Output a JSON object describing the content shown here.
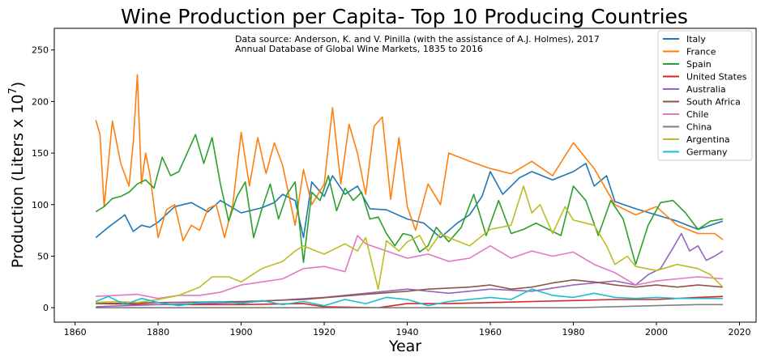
{
  "chart_data": {
    "type": "line",
    "title": "Wine Production per Capita- Top 10 Producing Countries",
    "xlabel": "Year",
    "ylabel": "Production (Liters x 10",
    "ylabel_sup": "7",
    "ylabel_close": ")",
    "xlim": [
      1855,
      2024
    ],
    "ylim": [
      -14,
      271
    ],
    "xticks": [
      1860,
      1880,
      1900,
      1920,
      1940,
      1960,
      1980,
      2000,
      2020
    ],
    "yticks": [
      0,
      50,
      100,
      150,
      200,
      250
    ],
    "annotation": [
      "Data source: Anderson, K. and V. Pinilla (with the assistance of A.J. Holmes), 2017",
      "Annual Database of Global Wine Markets, 1835 to 2016"
    ],
    "legend_position": "top-right",
    "series": [
      {
        "name": "Italy",
        "color": "#1f77b4",
        "x": [
          1865,
          1868,
          1872,
          1874,
          1876,
          1878,
          1880,
          1884,
          1888,
          1892,
          1895,
          1900,
          1905,
          1908,
          1910,
          1913,
          1915,
          1917,
          1920,
          1922,
          1925,
          1928,
          1931,
          1935,
          1940,
          1944,
          1948,
          1952,
          1955,
          1958,
          1960,
          1963,
          1967,
          1970,
          1975,
          1980,
          1983,
          1985,
          1988,
          1990,
          1995,
          2000,
          2005,
          2010,
          2016
        ],
        "y": [
          68,
          78,
          90,
          74,
          80,
          78,
          83,
          98,
          102,
          93,
          104,
          92,
          97,
          102,
          110,
          104,
          68,
          122,
          108,
          128,
          110,
          118,
          96,
          95,
          86,
          82,
          68,
          82,
          90,
          108,
          132,
          110,
          126,
          132,
          124,
          132,
          140,
          118,
          128,
          103,
          96,
          90,
          84,
          76,
          84
        ]
      },
      {
        "name": "France",
        "color": "#ff7f0e",
        "x": [
          1865,
          1866,
          1867,
          1869,
          1871,
          1873,
          1874,
          1875,
          1876,
          1877,
          1878,
          1880,
          1882,
          1884,
          1886,
          1888,
          1890,
          1892,
          1894,
          1896,
          1898,
          1900,
          1902,
          1904,
          1906,
          1908,
          1910,
          1913,
          1915,
          1917,
          1920,
          1922,
          1924,
          1926,
          1928,
          1930,
          1932,
          1934,
          1936,
          1938,
          1940,
          1942,
          1945,
          1948,
          1950,
          1955,
          1960,
          1965,
          1970,
          1975,
          1980,
          1985,
          1990,
          1995,
          2000,
          2005,
          2010,
          2014,
          2016
        ],
        "y": [
          182,
          168,
          98,
          181,
          140,
          118,
          160,
          226,
          120,
          150,
          130,
          68,
          95,
          100,
          65,
          80,
          75,
          96,
          100,
          68,
          100,
          170,
          118,
          165,
          130,
          160,
          138,
          80,
          134,
          100,
          120,
          194,
          120,
          178,
          150,
          110,
          176,
          185,
          105,
          165,
          98,
          75,
          120,
          100,
          150,
          142,
          135,
          130,
          142,
          128,
          160,
          135,
          100,
          90,
          98,
          80,
          72,
          72,
          66
        ]
      },
      {
        "name": "Spain",
        "color": "#2ca02c",
        "x": [
          1865,
          1867,
          1869,
          1871,
          1873,
          1875,
          1877,
          1879,
          1881,
          1883,
          1885,
          1887,
          1889,
          1891,
          1893,
          1895,
          1897,
          1899,
          1901,
          1903,
          1905,
          1907,
          1909,
          1911,
          1913,
          1915,
          1917,
          1919,
          1921,
          1923,
          1925,
          1927,
          1929,
          1931,
          1933,
          1935,
          1937,
          1939,
          1941,
          1943,
          1945,
          1947,
          1950,
          1953,
          1956,
          1959,
          1962,
          1965,
          1968,
          1971,
          1974,
          1977,
          1980,
          1983,
          1986,
          1989,
          1992,
          1995,
          1998,
          2001,
          2004,
          2007,
          2010,
          2013,
          2016
        ],
        "y": [
          93,
          98,
          106,
          108,
          112,
          120,
          124,
          116,
          146,
          128,
          132,
          150,
          168,
          140,
          165,
          120,
          84,
          108,
          122,
          68,
          96,
          120,
          86,
          110,
          122,
          44,
          112,
          104,
          128,
          94,
          116,
          104,
          112,
          86,
          88,
          72,
          60,
          72,
          70,
          54,
          60,
          78,
          64,
          78,
          110,
          70,
          104,
          72,
          76,
          82,
          76,
          70,
          118,
          104,
          70,
          104,
          86,
          42,
          80,
          102,
          104,
          92,
          76,
          84,
          86
        ]
      },
      {
        "name": "United States",
        "color": "#d62728",
        "x": [
          1865,
          1880,
          1900,
          1915,
          1920,
          1933,
          1940,
          1950,
          1960,
          1970,
          1980,
          1990,
          2000,
          2010,
          2016
        ],
        "y": [
          4,
          3,
          3,
          4,
          1,
          0,
          4,
          4,
          5,
          6,
          7,
          8,
          8,
          10,
          11
        ]
      },
      {
        "name": "Australia",
        "color": "#9467bd",
        "x": [
          1865,
          1880,
          1900,
          1920,
          1940,
          1950,
          1960,
          1970,
          1980,
          1990,
          1995,
          1998,
          2001,
          2004,
          2006,
          2008,
          2010,
          2012,
          2014,
          2016
        ],
        "y": [
          1,
          3,
          5,
          10,
          18,
          14,
          18,
          16,
          22,
          26,
          22,
          32,
          38,
          58,
          72,
          55,
          60,
          46,
          50,
          55
        ]
      },
      {
        "name": "South Africa",
        "color": "#8c564b",
        "x": [
          1865,
          1880,
          1900,
          1915,
          1930,
          1940,
          1945,
          1955,
          1960,
          1965,
          1970,
          1975,
          1980,
          1985,
          1990,
          1995,
          2000,
          2005,
          2010,
          2016
        ],
        "y": [
          4,
          5,
          6,
          8,
          13,
          16,
          18,
          20,
          22,
          18,
          20,
          24,
          27,
          25,
          22,
          20,
          22,
          20,
          22,
          20
        ]
      },
      {
        "name": "Chile",
        "color": "#e377c2",
        "x": [
          1865,
          1870,
          1875,
          1880,
          1885,
          1890,
          1895,
          1900,
          1905,
          1910,
          1915,
          1920,
          1925,
          1928,
          1930,
          1935,
          1940,
          1945,
          1950,
          1955,
          1960,
          1965,
          1970,
          1975,
          1980,
          1985,
          1990,
          1995,
          2000,
          2005,
          2010,
          2016
        ],
        "y": [
          11,
          12,
          13,
          9,
          12,
          12,
          15,
          22,
          25,
          28,
          38,
          40,
          35,
          70,
          62,
          55,
          48,
          52,
          45,
          48,
          60,
          48,
          55,
          50,
          54,
          42,
          34,
          22,
          26,
          28,
          30,
          28
        ]
      },
      {
        "name": "China",
        "color": "#7f7f7f",
        "x": [
          1865,
          1900,
          1950,
          1980,
          1990,
          2000,
          2010,
          2016
        ],
        "y": [
          0,
          0,
          0,
          0,
          1,
          2,
          3,
          3
        ]
      },
      {
        "name": "Argentina",
        "color": "#bcbd22",
        "x": [
          1865,
          1870,
          1875,
          1880,
          1885,
          1890,
          1893,
          1897,
          1900,
          1905,
          1910,
          1913,
          1915,
          1918,
          1920,
          1923,
          1925,
          1928,
          1930,
          1933,
          1935,
          1938,
          1940,
          1943,
          1945,
          1948,
          1950,
          1955,
          1960,
          1965,
          1968,
          1970,
          1972,
          1975,
          1978,
          1980,
          1983,
          1985,
          1988,
          1990,
          1993,
          1995,
          2000,
          2005,
          2010,
          2013,
          2016
        ],
        "y": [
          5,
          6,
          5,
          8,
          12,
          20,
          30,
          30,
          25,
          38,
          45,
          55,
          60,
          55,
          52,
          58,
          62,
          55,
          68,
          18,
          65,
          55,
          64,
          70,
          55,
          72,
          68,
          60,
          76,
          80,
          118,
          92,
          100,
          72,
          98,
          85,
          82,
          80,
          60,
          42,
          50,
          40,
          36,
          42,
          38,
          32,
          20
        ]
      },
      {
        "name": "Germany",
        "color": "#17becf",
        "x": [
          1865,
          1868,
          1872,
          1876,
          1880,
          1885,
          1890,
          1895,
          1900,
          1905,
          1910,
          1915,
          1920,
          1925,
          1930,
          1935,
          1940,
          1945,
          1950,
          1955,
          1960,
          1965,
          1970,
          1975,
          1980,
          1985,
          1990,
          1995,
          2000,
          2005,
          2010,
          2016
        ],
        "y": [
          6,
          11,
          3,
          9,
          5,
          2,
          5,
          6,
          4,
          7,
          3,
          6,
          2,
          8,
          4,
          10,
          8,
          2,
          6,
          8,
          10,
          8,
          18,
          12,
          10,
          14,
          10,
          9,
          10,
          9,
          9,
          9
        ]
      }
    ]
  }
}
